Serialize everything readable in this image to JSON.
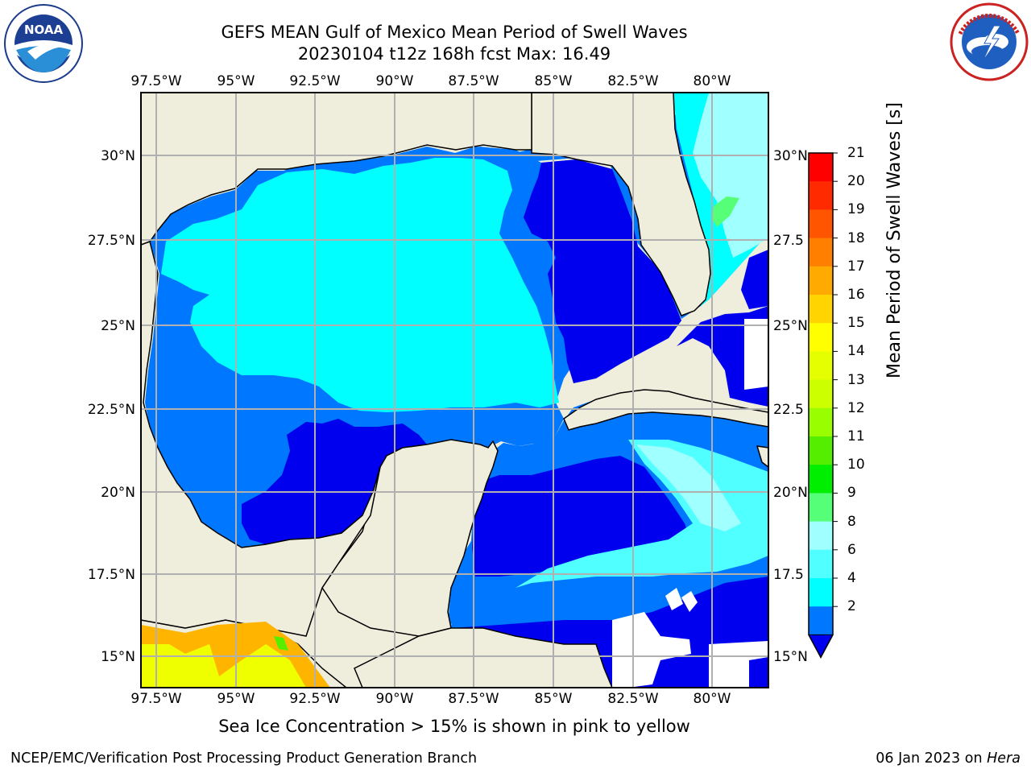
{
  "header": {
    "title_line1": "GEFS MEAN Gulf of Mexico Mean Period of Swell Waves",
    "title_line2": "20230104 t12z 168h fcst   Max: 16.49"
  },
  "logos": {
    "left": {
      "name": "NOAA",
      "ring_text": "NATIONAL OCEANIC AND ATMOSPHERIC ADMINISTRATION · U.S. DEPARTMENT OF COMMERCE"
    },
    "right": {
      "name": "NATIONAL WEATHER SERVICE"
    }
  },
  "map": {
    "lon_labels": [
      "97.5°W",
      "95°W",
      "92.5°W",
      "90°W",
      "87.5°W",
      "85°W",
      "82.5°W",
      "80°W"
    ],
    "lat_labels_left": [
      "30°N",
      "27.5°N",
      "25°N",
      "22.5°N",
      "20°N",
      "17.5°N",
      "15°N"
    ],
    "lat_labels_right": [
      "30°N",
      "27.5",
      "25°N",
      "22.5",
      "20°N",
      "17.5",
      "15°N"
    ],
    "colors": {
      "land": "#efeedc",
      "grid": "#b0b0b0",
      "c2": "#0000ee",
      "c4": "#0077ff",
      "c6": "#00ffff",
      "c8": "#50ffff",
      "c9": "#a0ffff",
      "c10": "#55ff77",
      "warm1": "#f0ff00",
      "warm2": "#ffb400"
    }
  },
  "colorbar": {
    "label": "Mean Period of Swell Waves [s]",
    "ticks": [
      "21",
      "20",
      "19",
      "18",
      "17",
      "16",
      "15",
      "14",
      "13",
      "12",
      "11",
      "10",
      "9",
      "8",
      "6",
      "4",
      "2"
    ],
    "colors": [
      "#ff0000",
      "#ff2a00",
      "#ff5500",
      "#ff8000",
      "#ffaa00",
      "#ffd400",
      "#ffff00",
      "#e6ff00",
      "#ccff00",
      "#99ff00",
      "#55ee00",
      "#00ee00",
      "#55ff77",
      "#a0ffff",
      "#50ffff",
      "#00ffff",
      "#0077ff"
    ],
    "extend_color": "#0000ee"
  },
  "footer": {
    "note": "Sea Ice Concentration > 15% is shown in pink to yellow",
    "credit_left": "NCEP/EMC/Verification Post Processing Product Generation Branch",
    "credit_right_date": "06 Jan 2023 on",
    "credit_right_host": "Hera"
  }
}
